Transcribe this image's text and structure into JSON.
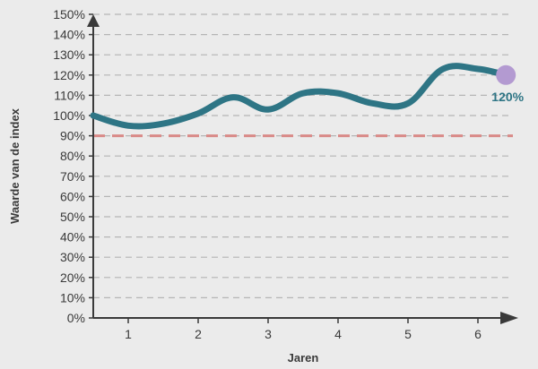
{
  "chart_data": {
    "type": "line",
    "xlabel": "Jaren",
    "ylabel": "Waarde van de index",
    "x_ticks": [
      "1",
      "2",
      "3",
      "4",
      "5",
      "6"
    ],
    "y_ticks": [
      "0%",
      "10%",
      "20%",
      "30%",
      "40%",
      "50%",
      "60%",
      "70%",
      "80%",
      "90%",
      "100%",
      "110%",
      "120%",
      "130%",
      "140%",
      "150%"
    ],
    "ylim": [
      0,
      150
    ],
    "xlim": [
      0.5,
      6.5
    ],
    "grid": "horizontal dashed",
    "series": [
      {
        "color": "#2e7585",
        "points": [
          {
            "x": 0.5,
            "y": 100
          },
          {
            "x": 1.0,
            "y": 95
          },
          {
            "x": 1.5,
            "y": 96
          },
          {
            "x": 2.0,
            "y": 101
          },
          {
            "x": 2.5,
            "y": 109
          },
          {
            "x": 3.0,
            "y": 103
          },
          {
            "x": 3.5,
            "y": 111
          },
          {
            "x": 4.0,
            "y": 111
          },
          {
            "x": 4.5,
            "y": 106
          },
          {
            "x": 5.0,
            "y": 106
          },
          {
            "x": 5.5,
            "y": 123
          },
          {
            "x": 6.0,
            "y": 123
          },
          {
            "x": 6.4,
            "y": 120
          }
        ]
      }
    ],
    "reference_line": {
      "y": 90,
      "color": "#d98a88",
      "style": "dashed"
    },
    "end_marker": {
      "x": 6.4,
      "y": 120,
      "label": "120%",
      "color": "#b39ad1",
      "label_color": "#2e7585"
    },
    "colors": {
      "background": "#ebebeb",
      "axis": "#3a3a3a",
      "grid": "#b5b5b5",
      "line": "#2e7585"
    }
  }
}
